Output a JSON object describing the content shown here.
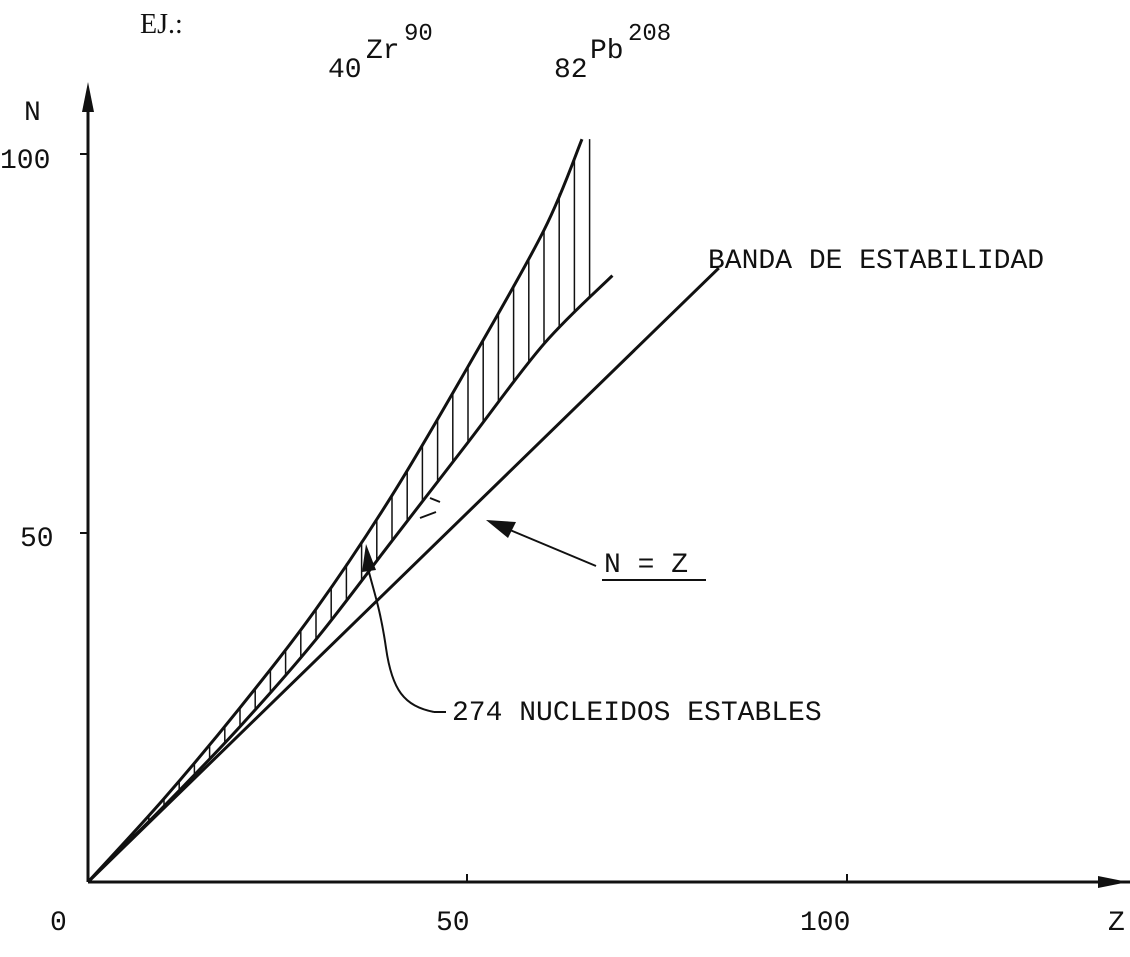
{
  "header": {
    "example_label": "EJ.:",
    "zr": {
      "sub": "40",
      "symbol": "Zr",
      "sup": "90"
    },
    "pb": {
      "sub": "82",
      "symbol": "Pb",
      "sup": "208"
    }
  },
  "axes": {
    "x_label": "Z",
    "y_label": "N",
    "x_ticks": [
      "0",
      "50",
      "100"
    ],
    "y_ticks": [
      "100",
      "50"
    ],
    "x_range": [
      0,
      135
    ],
    "y_range": [
      0,
      110
    ]
  },
  "labels": {
    "band": "BANDA DE ESTABILIDAD",
    "line_nz": "N = Z",
    "nuclides": "274 NUCLEIDOS ESTABLES"
  },
  "curves": {
    "band_upper": [
      [
        0,
        0
      ],
      [
        10,
        11
      ],
      [
        20,
        23
      ],
      [
        30,
        36
      ],
      [
        40,
        51
      ],
      [
        50,
        68
      ],
      [
        60,
        86
      ],
      [
        65,
        98
      ]
    ],
    "band_lower": [
      [
        0,
        0
      ],
      [
        10,
        10
      ],
      [
        20,
        20.5
      ],
      [
        30,
        32
      ],
      [
        40,
        45
      ],
      [
        50,
        58
      ],
      [
        60,
        71
      ],
      [
        69,
        80
      ]
    ],
    "nz_line": [
      [
        0,
        0
      ],
      [
        83,
        81
      ]
    ]
  },
  "colors": {
    "ink": "#111111",
    "background": "#ffffff"
  }
}
